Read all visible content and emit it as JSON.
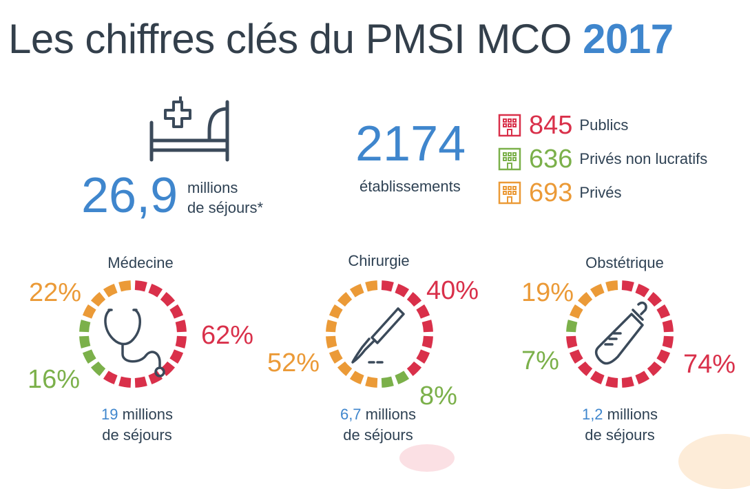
{
  "title": {
    "main": "Les chiffres clés du PMSI MCO",
    "year": "2017"
  },
  "stays": {
    "value": "26,9",
    "unit_line1": "millions",
    "unit_line2": "de séjours*",
    "icon": "hospital-bed-icon"
  },
  "establishments": {
    "value": "2174",
    "label": "établissements",
    "items": [
      {
        "count": "845",
        "label": "Publics",
        "color": "#d9304a",
        "icon": "building-icon"
      },
      {
        "count": "636",
        "label": "Privés non lucratifs",
        "color": "#7bb04a",
        "icon": "building-icon"
      },
      {
        "count": "693",
        "label": "Privés",
        "color": "#eb9a37",
        "icon": "building-icon"
      }
    ]
  },
  "colors": {
    "public": "#d9304a",
    "non_profit": "#7bb04a",
    "private": "#eb9a37",
    "accent": "#3f86cd"
  },
  "activities": [
    {
      "title": "Médecine",
      "icon": "stethoscope-icon",
      "shares": {
        "public": 62,
        "private": 22,
        "non_profit": 16
      },
      "labels": {
        "public": "62%",
        "private": "22%",
        "non_profit": "16%"
      },
      "stays_value": "19",
      "stays_unit": "millions",
      "stays_line2": "de séjours"
    },
    {
      "title": "Chirurgie",
      "icon": "scalpel-icon",
      "shares": {
        "public": 40,
        "private": 52,
        "non_profit": 8
      },
      "labels": {
        "public": "40%",
        "private": "52%",
        "non_profit": "8%"
      },
      "stays_value": "6,7",
      "stays_unit": "millions",
      "stays_line2": "de séjours"
    },
    {
      "title": "Obstétrique",
      "icon": "baby-bottle-icon",
      "shares": {
        "public": 74,
        "private": 19,
        "non_profit": 7
      },
      "labels": {
        "public": "74%",
        "private": "19%",
        "non_profit": "7%"
      },
      "stays_value": "1,2",
      "stays_unit": "millions",
      "stays_line2": "de séjours"
    }
  ]
}
